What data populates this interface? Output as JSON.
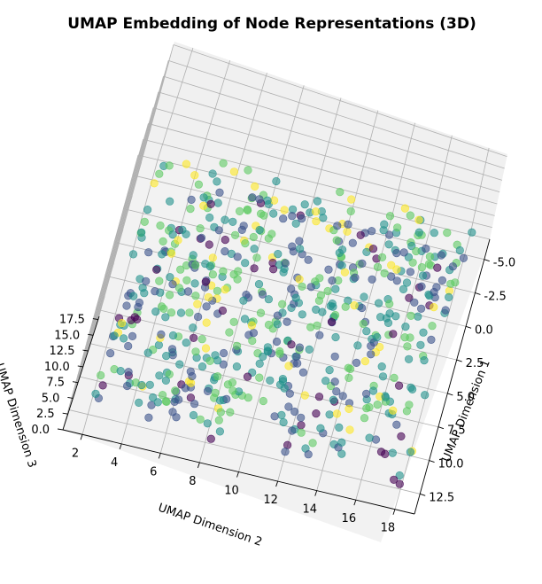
{
  "chart_data": {
    "type": "scatter",
    "projection": "3d",
    "title": "UMAP Embedding of Node Representations (3D)",
    "xlabel": "UMAP Dimension 2",
    "ylabel": "UMAP Dimension 1",
    "zlabel": "UMAP Dimension 3",
    "x_ticks": [
      "2",
      "4",
      "6",
      "8",
      "10",
      "12",
      "14",
      "16",
      "18"
    ],
    "y_ticks": [
      "-5.0",
      "-2.5",
      "0.0",
      "2.5",
      "5.0",
      "7.5",
      "10.0",
      "12.5"
    ],
    "z_ticks": [
      "0.0",
      "2.5",
      "5.0",
      "7.5",
      "10.0",
      "12.5",
      "15.0",
      "17.5"
    ],
    "xlim": [
      1,
      19
    ],
    "ylim": [
      -6.5,
      14
    ],
    "zlim": [
      0,
      18
    ],
    "colormap": "viridis",
    "colors": [
      "#440154",
      "#3b528b",
      "#21918c",
      "#5ec962",
      "#fde725"
    ],
    "point_alpha": 0.6,
    "grid": true,
    "point_count": 620
  }
}
